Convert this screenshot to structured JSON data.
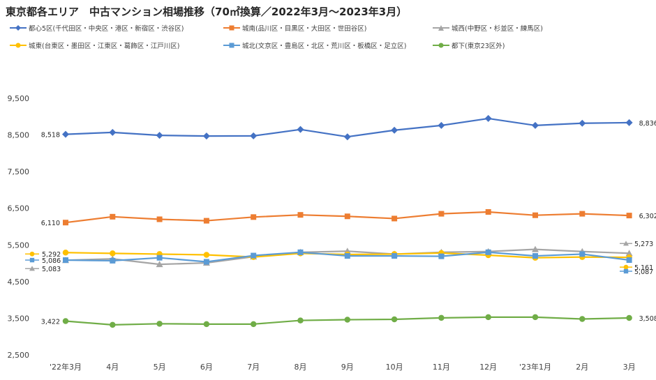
{
  "title": "東京都各エリア　中古マンション相場推移（70㎡換算／2022年3月〜2023年3月）",
  "chart_data": {
    "type": "line",
    "categories": [
      "'22年3月",
      "4月",
      "5月",
      "6月",
      "7月",
      "8月",
      "9月",
      "10月",
      "11月",
      "12月",
      "'23年1月",
      "2月",
      "3月"
    ],
    "yticks": [
      2500,
      3500,
      4500,
      5500,
      6500,
      7500,
      8500,
      9500
    ],
    "ylim": [
      2500,
      9500
    ],
    "grid": false,
    "legend_position": "top",
    "series": [
      {
        "name": "都心5区(千代田区・中央区・港区・新宿区・渋谷区)",
        "color": "#4472C4",
        "marker": "diamond",
        "values": [
          8518,
          8570,
          8490,
          8470,
          8475,
          8650,
          8450,
          8630,
          8760,
          8950,
          8760,
          8820,
          8836
        ],
        "start_label": "8,518",
        "end_label": "8,836"
      },
      {
        "name": "城南(品川区・目黒区・大田区・世田谷区)",
        "color": "#ED7D31",
        "marker": "square",
        "values": [
          6110,
          6270,
          6200,
          6160,
          6260,
          6320,
          6280,
          6220,
          6350,
          6400,
          6310,
          6350,
          6302
        ],
        "start_label": "6,110",
        "end_label": "6,302"
      },
      {
        "name": "城西(中野区・杉並区・練馬区)",
        "color": "#A5A5A5",
        "marker": "triangle",
        "values": [
          5083,
          5120,
          4970,
          5010,
          5180,
          5300,
          5330,
          5250,
          5300,
          5320,
          5380,
          5320,
          5273
        ],
        "start_label": "5,083",
        "end_label": "5,273"
      },
      {
        "name": "城東(台東区・墨田区・江東区・葛飾区・江戸川区)",
        "color": "#FFC000",
        "marker": "circle",
        "values": [
          5292,
          5270,
          5250,
          5230,
          5170,
          5270,
          5240,
          5250,
          5280,
          5220,
          5150,
          5170,
          5161
        ],
        "start_label": "5,292",
        "end_label": "5,161"
      },
      {
        "name": "城北(文京区・豊島区・北区・荒川区・板橋区・足立区)",
        "color": "#5B9BD5",
        "marker": "square",
        "values": [
          5086,
          5070,
          5150,
          5040,
          5210,
          5300,
          5200,
          5200,
          5190,
          5300,
          5200,
          5250,
          5087
        ],
        "start_label": "5,086",
        "end_label": "5,087"
      },
      {
        "name": "都下(東京23区外)",
        "color": "#70AD47",
        "marker": "circle",
        "values": [
          3422,
          3320,
          3350,
          3340,
          3340,
          3440,
          3460,
          3470,
          3510,
          3530,
          3530,
          3480,
          3508
        ],
        "start_label": "3,422",
        "end_label": "3,508"
      }
    ]
  }
}
